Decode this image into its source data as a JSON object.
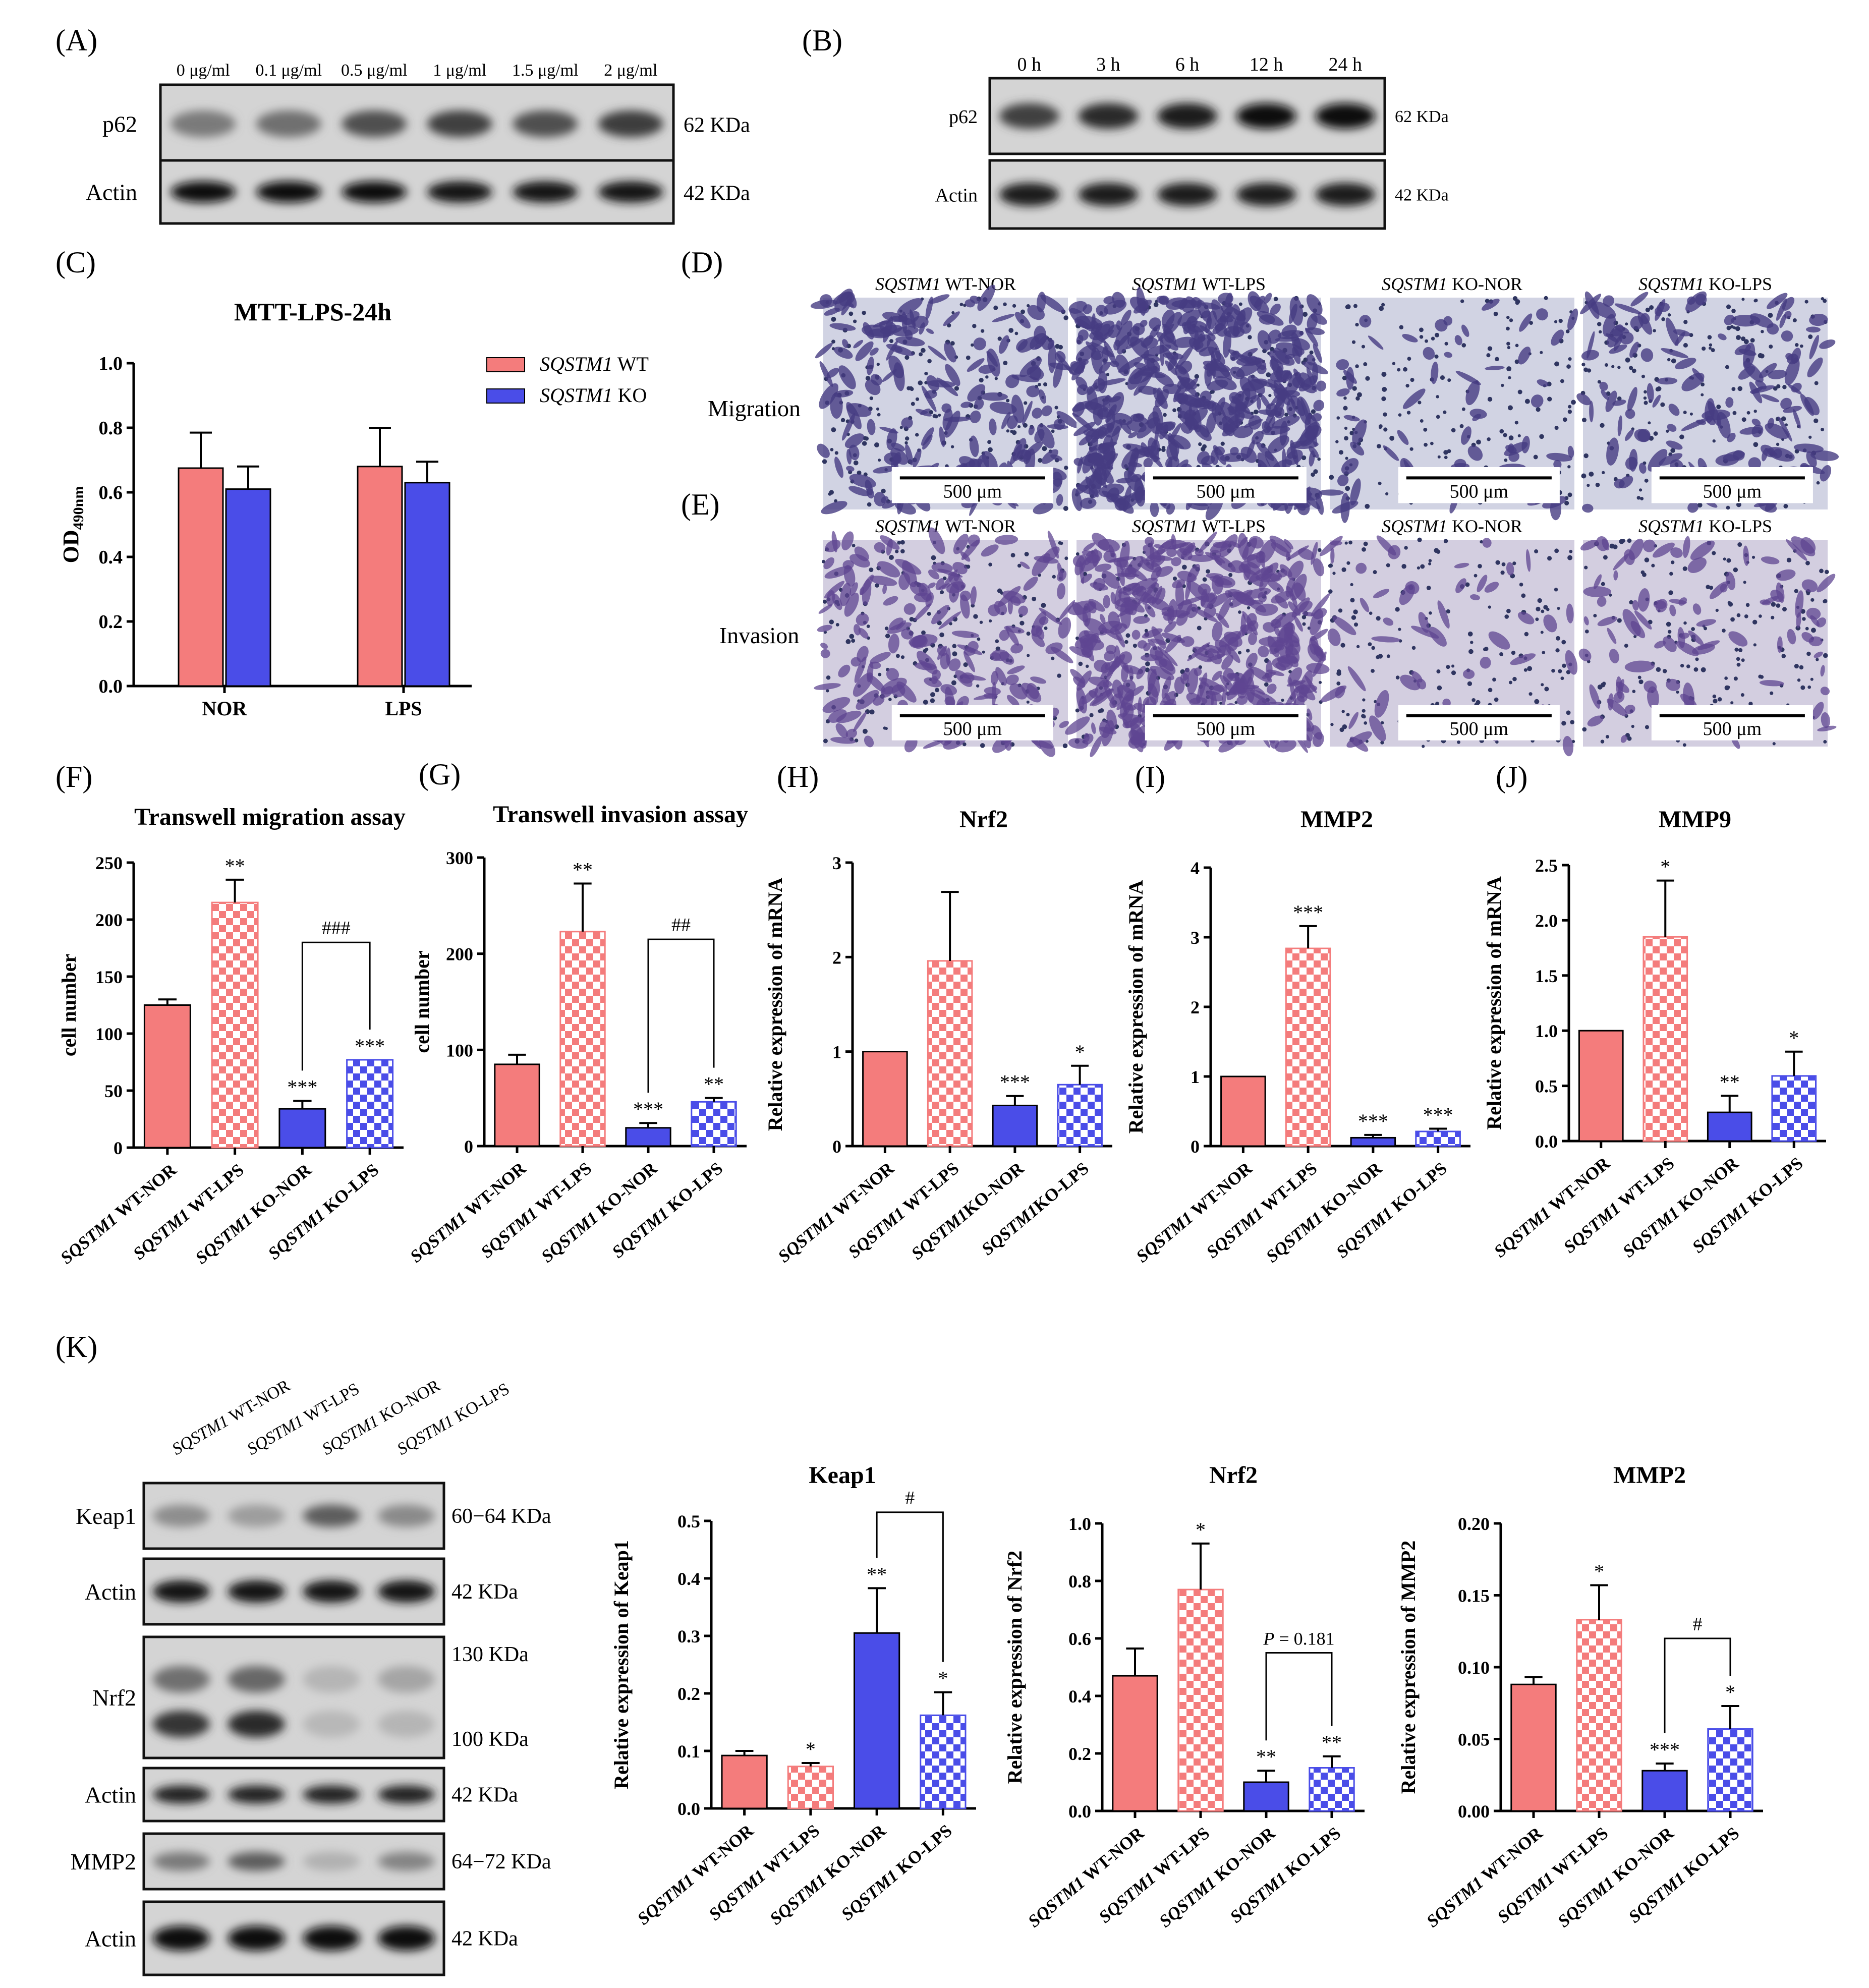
{
  "panels": {
    "A": {
      "letter": "(A)",
      "lanes": [
        "0 μg/ml",
        "0.1 μg/ml",
        "0.5 μg/ml",
        "1 μg/ml",
        "1.5 μg/ml",
        "2 μg/ml"
      ],
      "rows": [
        {
          "protein": "p62",
          "size": "62 KDa",
          "intensity": [
            0.4,
            0.45,
            0.62,
            0.7,
            0.62,
            0.72
          ]
        },
        {
          "protein": "Actin",
          "size": "42 KDa",
          "intensity": [
            0.97,
            0.95,
            0.95,
            0.93,
            0.93,
            0.93
          ]
        }
      ]
    },
    "B": {
      "letter": "(B)",
      "lanes": [
        "0 h",
        "3 h",
        "6 h",
        "12 h",
        "24 h"
      ],
      "rows": [
        {
          "protein": "p62",
          "size": "62 KDa",
          "intensity": [
            0.7,
            0.8,
            0.88,
            0.97,
            0.97
          ]
        },
        {
          "protein": "Actin",
          "size": "42 KDa",
          "intensity": [
            0.88,
            0.88,
            0.88,
            0.88,
            0.88
          ]
        }
      ]
    },
    "D": {
      "letter": "(D)",
      "rowlabel": "Migration",
      "scale": "500 μm",
      "images": [
        {
          "gene": "SQSTM1",
          "cond": " WT-NOR",
          "density": 0.35
        },
        {
          "gene": "SQSTM1",
          "cond": " WT-LPS",
          "density": 0.85
        },
        {
          "gene": "SQSTM1",
          "cond": " KO-NOR",
          "density": 0.08
        },
        {
          "gene": "SQSTM1",
          "cond": " KO-LPS",
          "density": 0.25
        }
      ]
    },
    "E": {
      "letter": "(E)",
      "rowlabel": "Invasion",
      "scale": "500 μm",
      "images": [
        {
          "gene": "SQSTM1",
          "cond": " WT-NOR",
          "density": 0.35
        },
        {
          "gene": "SQSTM1",
          "cond": " WT-LPS",
          "density": 0.8
        },
        {
          "gene": "SQSTM1",
          "cond": " KO-NOR",
          "density": 0.06
        },
        {
          "gene": "SQSTM1",
          "cond": " KO-LPS",
          "density": 0.15
        }
      ]
    },
    "K": {
      "letter": "(K)",
      "lanes": [
        {
          "gene": "SQSTM1",
          "cond": " WT-NOR"
        },
        {
          "gene": "SQSTM1",
          "cond": " WT-LPS"
        },
        {
          "gene": "SQSTM1",
          "cond": " KO-NOR"
        },
        {
          "gene": "SQSTM1",
          "cond": " KO-LPS"
        }
      ],
      "blots": [
        {
          "protein": "Keap1",
          "sizes": [
            "60−64 KDa"
          ],
          "rows": [
            [
              0.3,
              0.22,
              0.55,
              0.32
            ]
          ]
        },
        {
          "protein": "Actin",
          "sizes": [
            "42 KDa"
          ],
          "rows": [
            [
              0.9,
              0.9,
              0.9,
              0.9
            ]
          ]
        },
        {
          "protein": "Nrf2",
          "sizes": [
            "130 KDa",
            "100 KDa"
          ],
          "rows": [
            [
              0.45,
              0.5,
              0.1,
              0.18
            ],
            [
              0.75,
              0.8,
              0.08,
              0.1
            ]
          ]
        },
        {
          "protein": "Actin",
          "sizes": [
            "42 KDa"
          ],
          "rows": [
            [
              0.85,
              0.85,
              0.85,
              0.85
            ]
          ]
        },
        {
          "protein": "MMP2",
          "sizes": [
            "64−72 KDa"
          ],
          "rows": [
            [
              0.4,
              0.55,
              0.12,
              0.35
            ]
          ]
        },
        {
          "protein": "Actin",
          "sizes": [
            "42 KDa"
          ],
          "rows": [
            [
              0.97,
              0.97,
              0.97,
              0.97
            ]
          ]
        }
      ]
    }
  },
  "colors": {
    "wt": "#f47c7c",
    "ko": "#4a4de8",
    "axis": "#000000"
  },
  "chart_data": [
    {
      "id": "C",
      "letter": "(C)",
      "type": "bar",
      "title": "MTT-LPS-24h",
      "ylabel_main": "OD",
      "ylabel_sub": "490nm",
      "categories": [
        "NOR",
        "LPS"
      ],
      "ylim": [
        0,
        1.0
      ],
      "yticks": [
        "0.0",
        "0.2",
        "0.4",
        "0.6",
        "0.8",
        "1.0"
      ],
      "legend": [
        {
          "gene": "SQSTM1",
          "label": " WT"
        },
        {
          "gene": "SQSTM1",
          "label": " KO"
        }
      ],
      "series": [
        {
          "group": "wt",
          "values": [
            0.675,
            0.68
          ],
          "errors": [
            0.11,
            0.12
          ]
        },
        {
          "group": "ko",
          "values": [
            0.61,
            0.63
          ],
          "errors": [
            0.07,
            0.065
          ]
        }
      ]
    },
    {
      "id": "F",
      "letter": "(F)",
      "type": "bar",
      "title": "Transwell migration assay",
      "ylabel": "cell number",
      "ylim": [
        0,
        250
      ],
      "yticks": [
        "0",
        "50",
        "100",
        "150",
        "200",
        "250"
      ],
      "bars": [
        {
          "label": "SQSTM1 WT-NOR",
          "gene": "SQSTM1",
          "cond": " WT-NOR",
          "value": 125,
          "error": 5,
          "fill": "wt",
          "pattern": "solid",
          "sig": ""
        },
        {
          "label": "SQSTM1 WT-LPS",
          "gene": "SQSTM1",
          "cond": " WT-LPS",
          "value": 215,
          "error": 20,
          "fill": "wt",
          "pattern": "check",
          "sig": "**"
        },
        {
          "label": "SQSTM1 KO-NOR",
          "gene": "SQSTM1",
          "cond": " KO-NOR",
          "value": 34,
          "error": 7,
          "fill": "ko",
          "pattern": "solid",
          "sig": "***"
        },
        {
          "label": "SQSTM1 KO-LPS",
          "gene": "SQSTM1",
          "cond": " KO-LPS",
          "value": 77,
          "error": 0,
          "fill": "ko",
          "pattern": "check",
          "sig": "***"
        }
      ],
      "bracket": {
        "from": 2,
        "to": 3,
        "y": 180,
        "label": "###"
      }
    },
    {
      "id": "G",
      "letter": "(G)",
      "type": "bar",
      "title": "Transwell invasion assay",
      "ylabel": "cell number",
      "ylim": [
        0,
        300
      ],
      "yticks": [
        "0",
        "100",
        "200",
        "300"
      ],
      "bars": [
        {
          "label": "SQSTM1 WT-NOR",
          "gene": "SQSTM1",
          "cond": " WT-NOR",
          "value": 85,
          "error": 10,
          "fill": "wt",
          "pattern": "solid",
          "sig": ""
        },
        {
          "label": "SQSTM1 WT-LPS",
          "gene": "SQSTM1",
          "cond": " WT-LPS",
          "value": 223,
          "error": 50,
          "fill": "wt",
          "pattern": "check",
          "sig": "**"
        },
        {
          "label": "SQSTM1 KO-NOR",
          "gene": "SQSTM1",
          "cond": " KO-NOR",
          "value": 19,
          "error": 5,
          "fill": "ko",
          "pattern": "solid",
          "sig": "***"
        },
        {
          "label": "SQSTM1 KO-LPS",
          "gene": "SQSTM1",
          "cond": " KO-LPS",
          "value": 46,
          "error": 4,
          "fill": "ko",
          "pattern": "check",
          "sig": "**"
        }
      ],
      "bracket": {
        "from": 2,
        "to": 3,
        "y": 215,
        "label": "##"
      }
    },
    {
      "id": "H",
      "letter": "(H)",
      "type": "bar",
      "title": "Nrf2",
      "ylabel": "Relative expression of mRNA",
      "ylim": [
        0,
        3
      ],
      "yticks": [
        "0",
        "1",
        "2",
        "3"
      ],
      "bars": [
        {
          "label": "SQSTM1 WT-NOR",
          "gene": "SQSTM1",
          "cond": " WT-NOR",
          "value": 1.0,
          "error": 0,
          "fill": "wt",
          "pattern": "solid",
          "sig": ""
        },
        {
          "label": "SQSTM1 WT-LPS",
          "gene": "SQSTM1",
          "cond": " WT-LPS",
          "value": 1.96,
          "error": 0.73,
          "fill": "wt",
          "pattern": "check",
          "sig": ""
        },
        {
          "label": "SQSTM1KO-NOR",
          "gene": "SQSTM1",
          "cond": "KO-NOR",
          "value": 0.43,
          "error": 0.1,
          "fill": "ko",
          "pattern": "solid",
          "sig": "***"
        },
        {
          "label": "SQSTM1KO-LPS",
          "gene": "SQSTM1",
          "cond": "KO-LPS",
          "value": 0.65,
          "error": 0.2,
          "fill": "ko",
          "pattern": "check",
          "sig": "*"
        }
      ]
    },
    {
      "id": "I",
      "letter": "(I)",
      "type": "bar",
      "title": "MMP2",
      "ylabel": "Relative expression of mRNA",
      "ylim": [
        0,
        4
      ],
      "yticks": [
        "0",
        "1",
        "2",
        "3",
        "4"
      ],
      "bars": [
        {
          "label": "SQSTM1 WT-NOR",
          "gene": "SQSTM1",
          "cond": " WT-NOR",
          "value": 1.0,
          "error": 0,
          "fill": "wt",
          "pattern": "solid",
          "sig": ""
        },
        {
          "label": "SQSTM1 WT-LPS",
          "gene": "SQSTM1",
          "cond": " WT-LPS",
          "value": 2.84,
          "error": 0.32,
          "fill": "wt",
          "pattern": "check",
          "sig": "***"
        },
        {
          "label": "SQSTM1 KO-NOR",
          "gene": "SQSTM1",
          "cond": " KO-NOR",
          "value": 0.12,
          "error": 0.04,
          "fill": "ko",
          "pattern": "solid",
          "sig": "***"
        },
        {
          "label": "SQSTM1 KO-LPS",
          "gene": "SQSTM1",
          "cond": " KO-LPS",
          "value": 0.21,
          "error": 0.04,
          "fill": "ko",
          "pattern": "check",
          "sig": "***"
        }
      ]
    },
    {
      "id": "J",
      "letter": "(J)",
      "type": "bar",
      "title": "MMP9",
      "ylabel": "Relative expression of mRNA",
      "ylim": [
        0,
        2.5
      ],
      "yticks": [
        "0.0",
        "0.5",
        "1.0",
        "1.5",
        "2.0",
        "2.5"
      ],
      "bars": [
        {
          "label": "SQSTM1 WT-NOR",
          "gene": "SQSTM1",
          "cond": " WT-NOR",
          "value": 1.0,
          "error": 0,
          "fill": "wt",
          "pattern": "solid",
          "sig": ""
        },
        {
          "label": "SQSTM1 WT-LPS",
          "gene": "SQSTM1",
          "cond": " WT-LPS",
          "value": 1.85,
          "error": 0.51,
          "fill": "wt",
          "pattern": "check",
          "sig": "*"
        },
        {
          "label": "SQSTM1 KO-NOR",
          "gene": "SQSTM1",
          "cond": " KO-NOR",
          "value": 0.26,
          "error": 0.15,
          "fill": "ko",
          "pattern": "solid",
          "sig": "**"
        },
        {
          "label": "SQSTM1 KO-LPS",
          "gene": "SQSTM1",
          "cond": " KO-LPS",
          "value": 0.59,
          "error": 0.22,
          "fill": "ko",
          "pattern": "check",
          "sig": "*"
        }
      ]
    },
    {
      "id": "K1",
      "letter": "",
      "type": "bar",
      "title": "Keap1",
      "ylabel": "Relative expression of Keap1",
      "ylim": [
        0,
        0.5
      ],
      "yticks": [
        "0.0",
        "0.1",
        "0.2",
        "0.3",
        "0.4",
        "0.5"
      ],
      "bars": [
        {
          "label": "SQSTM1 WT-NOR",
          "gene": "SQSTM1",
          "cond": " WT-NOR",
          "value": 0.092,
          "error": 0.008,
          "fill": "wt",
          "pattern": "solid",
          "sig": ""
        },
        {
          "label": "SQSTM1 WT-LPS",
          "gene": "SQSTM1",
          "cond": " WT-LPS",
          "value": 0.073,
          "error": 0.006,
          "fill": "wt",
          "pattern": "check",
          "sig": "*"
        },
        {
          "label": "SQSTM1 KO-NOR",
          "gene": "SQSTM1",
          "cond": " KO-NOR",
          "value": 0.305,
          "error": 0.078,
          "fill": "ko",
          "pattern": "solid",
          "sig": "**"
        },
        {
          "label": "SQSTM1 KO-LPS",
          "gene": "SQSTM1",
          "cond": " KO-LPS",
          "value": 0.162,
          "error": 0.04,
          "fill": "ko",
          "pattern": "check",
          "sig": "*"
        }
      ],
      "bracket": {
        "from": 2,
        "to": 3,
        "y": 0.515,
        "label": "#"
      }
    },
    {
      "id": "K2",
      "letter": "",
      "type": "bar",
      "title": "Nrf2",
      "ylabel": "Relative expression of Nrf2",
      "ylim": [
        0,
        1.0
      ],
      "yticks": [
        "0.0",
        "0.2",
        "0.4",
        "0.6",
        "0.8",
        "1.0"
      ],
      "bars": [
        {
          "label": "SQSTM1 WT-NOR",
          "gene": "SQSTM1",
          "cond": " WT-NOR",
          "value": 0.47,
          "error": 0.095,
          "fill": "wt",
          "pattern": "solid",
          "sig": ""
        },
        {
          "label": "SQSTM1 WT-LPS",
          "gene": "SQSTM1",
          "cond": " WT-LPS",
          "value": 0.77,
          "error": 0.16,
          "fill": "wt",
          "pattern": "check",
          "sig": "*"
        },
        {
          "label": "SQSTM1 KO-NOR",
          "gene": "SQSTM1",
          "cond": " KO-NOR",
          "value": 0.1,
          "error": 0.04,
          "fill": "ko",
          "pattern": "solid",
          "sig": "**"
        },
        {
          "label": "SQSTM1 KO-LPS",
          "gene": "SQSTM1",
          "cond": " KO-LPS",
          "value": 0.15,
          "error": 0.04,
          "fill": "ko",
          "pattern": "check",
          "sig": "**"
        }
      ],
      "bracket": {
        "from": 2,
        "to": 3,
        "y": 0.55,
        "label": "",
        "label_prefix": "P",
        "label_suffix": " = 0.181"
      }
    },
    {
      "id": "K3",
      "letter": "",
      "type": "bar",
      "title": "MMP2",
      "ylabel": "Relative expression of MMP2",
      "ylim": [
        0,
        0.2
      ],
      "yticks": [
        "0.00",
        "0.05",
        "0.10",
        "0.15",
        "0.20"
      ],
      "bars": [
        {
          "label": "SQSTM1 WT-NOR",
          "gene": "SQSTM1",
          "cond": " WT-NOR",
          "value": 0.088,
          "error": 0.005,
          "fill": "wt",
          "pattern": "solid",
          "sig": ""
        },
        {
          "label": "SQSTM1 WT-LPS",
          "gene": "SQSTM1",
          "cond": " WT-LPS",
          "value": 0.133,
          "error": 0.024,
          "fill": "wt",
          "pattern": "check",
          "sig": "*"
        },
        {
          "label": "SQSTM1 KO-NOR",
          "gene": "SQSTM1",
          "cond": " KO-NOR",
          "value": 0.028,
          "error": 0.005,
          "fill": "ko",
          "pattern": "solid",
          "sig": "***"
        },
        {
          "label": "SQSTM1 KO-LPS",
          "gene": "SQSTM1",
          "cond": " KO-LPS",
          "value": 0.057,
          "error": 0.016,
          "fill": "ko",
          "pattern": "check",
          "sig": "*"
        }
      ],
      "bracket": {
        "from": 2,
        "to": 3,
        "y": 0.12,
        "label": "#"
      }
    }
  ]
}
